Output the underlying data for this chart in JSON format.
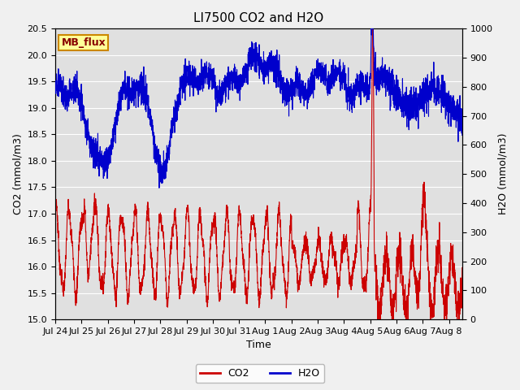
{
  "title": "LI7500 CO2 and H2O",
  "xlabel": "Time",
  "ylabel_left": "CO2 (mmol/m3)",
  "ylabel_right": "H2O (mmol/m3)",
  "ylim_left": [
    15.0,
    20.5
  ],
  "ylim_right": [
    0,
    1000
  ],
  "yticks_left": [
    15.0,
    15.5,
    16.0,
    16.5,
    17.0,
    17.5,
    18.0,
    18.5,
    19.0,
    19.5,
    20.0,
    20.5
  ],
  "yticks_right": [
    0,
    100,
    200,
    300,
    400,
    500,
    600,
    700,
    800,
    900,
    1000
  ],
  "xtick_labels": [
    "Jul 24",
    "Jul 25",
    "Jul 26",
    "Jul 27",
    "Jul 28",
    "Jul 29",
    "Jul 30",
    "Jul 31",
    "Aug 1",
    "Aug 2",
    "Aug 3",
    "Aug 4",
    "Aug 5",
    "Aug 6",
    "Aug 7",
    "Aug 8"
  ],
  "co2_color": "#cc0000",
  "h2o_color": "#0000cc",
  "plot_bg_color": "#e0e0e0",
  "fig_bg_color": "#f0f0f0",
  "legend_label": "MB_flux",
  "legend_box_facecolor": "#ffff99",
  "legend_box_edgecolor": "#cc8800",
  "grid_color": "#ffffff",
  "title_fontsize": 11,
  "axis_label_fontsize": 9,
  "tick_fontsize": 8,
  "legend_fontsize": 9,
  "linewidth": 0.8
}
